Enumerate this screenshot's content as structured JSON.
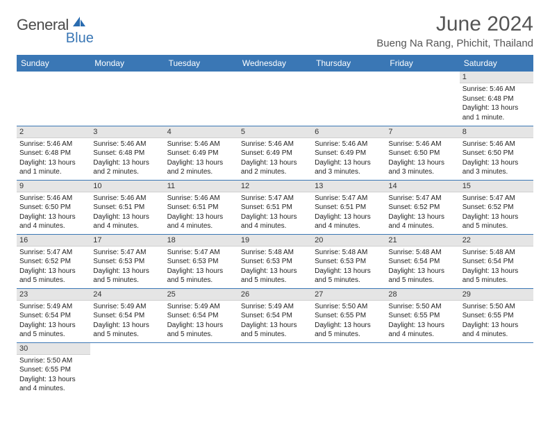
{
  "brand": {
    "main": "General",
    "sub": "Blue",
    "icon_color": "#2a6cb0"
  },
  "header": {
    "title": "June 2024",
    "location": "Bueng Na Rang, Phichit, Thailand"
  },
  "theme": {
    "header_bg": "#3a77b5",
    "header_fg": "#ffffff",
    "daynum_bg": "#e5e5e5",
    "row_border": "#3a77b5"
  },
  "weekdays": [
    "Sunday",
    "Monday",
    "Tuesday",
    "Wednesday",
    "Thursday",
    "Friday",
    "Saturday"
  ],
  "weeks": [
    [
      null,
      null,
      null,
      null,
      null,
      null,
      {
        "n": "1",
        "sr": "5:46 AM",
        "ss": "6:48 PM",
        "dl": "13 hours and 1 minute."
      }
    ],
    [
      {
        "n": "2",
        "sr": "5:46 AM",
        "ss": "6:48 PM",
        "dl": "13 hours and 1 minute."
      },
      {
        "n": "3",
        "sr": "5:46 AM",
        "ss": "6:48 PM",
        "dl": "13 hours and 2 minutes."
      },
      {
        "n": "4",
        "sr": "5:46 AM",
        "ss": "6:49 PM",
        "dl": "13 hours and 2 minutes."
      },
      {
        "n": "5",
        "sr": "5:46 AM",
        "ss": "6:49 PM",
        "dl": "13 hours and 2 minutes."
      },
      {
        "n": "6",
        "sr": "5:46 AM",
        "ss": "6:49 PM",
        "dl": "13 hours and 3 minutes."
      },
      {
        "n": "7",
        "sr": "5:46 AM",
        "ss": "6:50 PM",
        "dl": "13 hours and 3 minutes."
      },
      {
        "n": "8",
        "sr": "5:46 AM",
        "ss": "6:50 PM",
        "dl": "13 hours and 3 minutes."
      }
    ],
    [
      {
        "n": "9",
        "sr": "5:46 AM",
        "ss": "6:50 PM",
        "dl": "13 hours and 4 minutes."
      },
      {
        "n": "10",
        "sr": "5:46 AM",
        "ss": "6:51 PM",
        "dl": "13 hours and 4 minutes."
      },
      {
        "n": "11",
        "sr": "5:46 AM",
        "ss": "6:51 PM",
        "dl": "13 hours and 4 minutes."
      },
      {
        "n": "12",
        "sr": "5:47 AM",
        "ss": "6:51 PM",
        "dl": "13 hours and 4 minutes."
      },
      {
        "n": "13",
        "sr": "5:47 AM",
        "ss": "6:51 PM",
        "dl": "13 hours and 4 minutes."
      },
      {
        "n": "14",
        "sr": "5:47 AM",
        "ss": "6:52 PM",
        "dl": "13 hours and 4 minutes."
      },
      {
        "n": "15",
        "sr": "5:47 AM",
        "ss": "6:52 PM",
        "dl": "13 hours and 5 minutes."
      }
    ],
    [
      {
        "n": "16",
        "sr": "5:47 AM",
        "ss": "6:52 PM",
        "dl": "13 hours and 5 minutes."
      },
      {
        "n": "17",
        "sr": "5:47 AM",
        "ss": "6:53 PM",
        "dl": "13 hours and 5 minutes."
      },
      {
        "n": "18",
        "sr": "5:47 AM",
        "ss": "6:53 PM",
        "dl": "13 hours and 5 minutes."
      },
      {
        "n": "19",
        "sr": "5:48 AM",
        "ss": "6:53 PM",
        "dl": "13 hours and 5 minutes."
      },
      {
        "n": "20",
        "sr": "5:48 AM",
        "ss": "6:53 PM",
        "dl": "13 hours and 5 minutes."
      },
      {
        "n": "21",
        "sr": "5:48 AM",
        "ss": "6:54 PM",
        "dl": "13 hours and 5 minutes."
      },
      {
        "n": "22",
        "sr": "5:48 AM",
        "ss": "6:54 PM",
        "dl": "13 hours and 5 minutes."
      }
    ],
    [
      {
        "n": "23",
        "sr": "5:49 AM",
        "ss": "6:54 PM",
        "dl": "13 hours and 5 minutes."
      },
      {
        "n": "24",
        "sr": "5:49 AM",
        "ss": "6:54 PM",
        "dl": "13 hours and 5 minutes."
      },
      {
        "n": "25",
        "sr": "5:49 AM",
        "ss": "6:54 PM",
        "dl": "13 hours and 5 minutes."
      },
      {
        "n": "26",
        "sr": "5:49 AM",
        "ss": "6:54 PM",
        "dl": "13 hours and 5 minutes."
      },
      {
        "n": "27",
        "sr": "5:50 AM",
        "ss": "6:55 PM",
        "dl": "13 hours and 5 minutes."
      },
      {
        "n": "28",
        "sr": "5:50 AM",
        "ss": "6:55 PM",
        "dl": "13 hours and 4 minutes."
      },
      {
        "n": "29",
        "sr": "5:50 AM",
        "ss": "6:55 PM",
        "dl": "13 hours and 4 minutes."
      }
    ],
    [
      {
        "n": "30",
        "sr": "5:50 AM",
        "ss": "6:55 PM",
        "dl": "13 hours and 4 minutes."
      },
      null,
      null,
      null,
      null,
      null,
      null
    ]
  ],
  "labels": {
    "sunrise": "Sunrise:",
    "sunset": "Sunset:",
    "daylight": "Daylight:"
  }
}
